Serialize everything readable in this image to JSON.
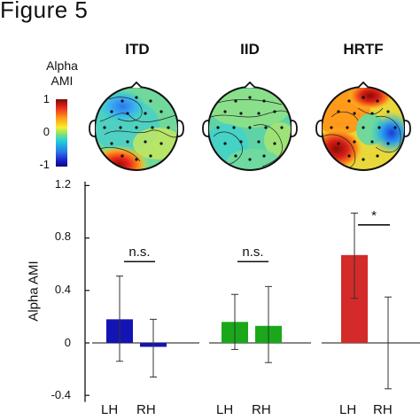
{
  "figure_title": "Figure 5",
  "colorbar": {
    "title_line1": "Alpha",
    "title_line2": "AMI",
    "ticks": [
      "1",
      "0",
      "-1"
    ]
  },
  "colors": {
    "ITD": "#1414b4",
    "IID": "#1aa81a",
    "HRTF": "#d42a2a"
  },
  "chart_data": {
    "type": "bar",
    "ylabel": "Alpha AMI",
    "ylim": [
      -0.45,
      1.2
    ],
    "yticks": [
      1.2,
      0.8,
      0.4,
      0,
      -0.4
    ],
    "ytick_labels": [
      "1.2",
      "0.8",
      "0.4",
      "0",
      "-0.4"
    ],
    "groups": [
      {
        "title": "ITD",
        "categories": [
          "LH",
          "RH"
        ],
        "values": [
          0.18,
          -0.03
        ],
        "err_low": [
          -0.14,
          -0.26
        ],
        "err_high": [
          0.51,
          0.18
        ],
        "significance": "n.s.",
        "significance_y": 0.62
      },
      {
        "title": "IID",
        "categories": [
          "LH",
          "RH"
        ],
        "values": [
          0.16,
          0.13
        ],
        "err_low": [
          -0.05,
          -0.15
        ],
        "err_high": [
          0.37,
          0.43
        ],
        "significance": "n.s.",
        "significance_y": 0.62
      },
      {
        "title": "HRTF",
        "categories": [
          "LH",
          "RH"
        ],
        "values": [
          0.67,
          0
        ],
        "err_low": [
          0.34,
          -0.35
        ],
        "err_high": [
          0.99,
          0.35
        ],
        "significance": "*",
        "significance_y": 0.9
      }
    ]
  }
}
